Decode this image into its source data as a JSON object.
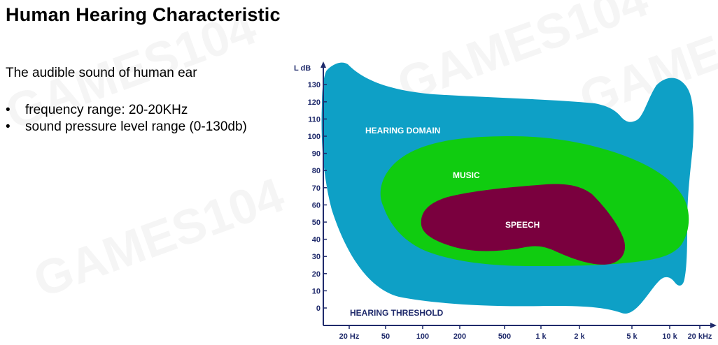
{
  "slide": {
    "title": "Human Hearing Characteristic",
    "intro": "The audible sound of human ear",
    "bullets": [
      {
        "marker": "•",
        "text": "frequency range:  20-20KHz"
      },
      {
        "marker": "•",
        "text": "sound pressure level range (0-130db)"
      }
    ]
  },
  "watermarks": [
    "GAMES104",
    "GAMES104",
    "GAMES104",
    "GAMES104"
  ],
  "diagram": {
    "y_axis_label": "L dB",
    "y_ticks": [
      "0",
      "10",
      "20",
      "30",
      "40",
      "50",
      "60",
      "70",
      "80",
      "90",
      "100",
      "110",
      "120",
      "130"
    ],
    "x_ticks": [
      "20 Hz",
      "50",
      "100",
      "200",
      "500",
      "1 k",
      "2 k",
      "5 k",
      "10 k",
      "20 kHz"
    ],
    "regions": {
      "hearing_domain": {
        "label": "HEARING DOMAIN",
        "color": "#0ea0c6"
      },
      "music": {
        "label": "MUSIC",
        "color": "#10cc10"
      },
      "speech": {
        "label": "SPEECH",
        "color": "#7a003e"
      }
    },
    "threshold_label": "HEARING THRESHOLD",
    "axis_color": "#1f2a6b"
  }
}
